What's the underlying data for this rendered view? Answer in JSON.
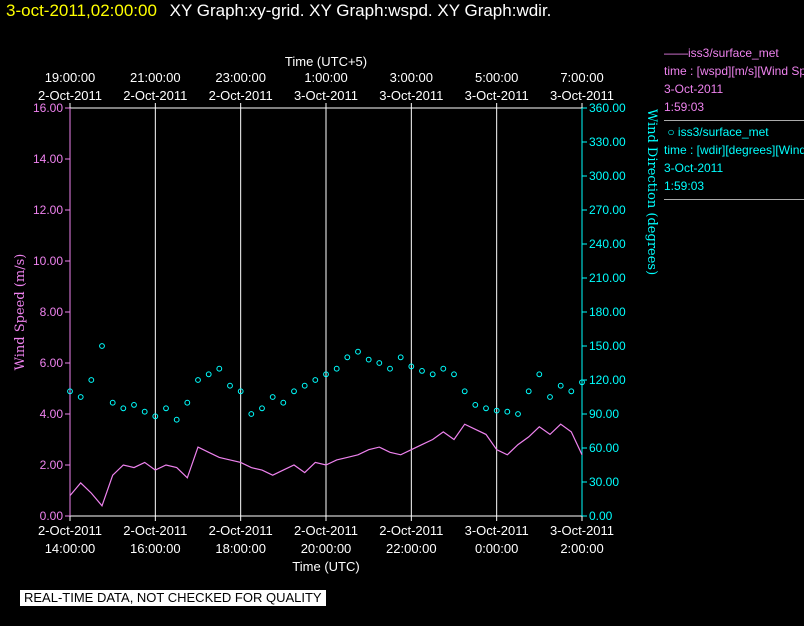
{
  "header": {
    "timestamp": "3-oct-2011,02:00:00",
    "graphs": "XY Graph:xy-grid.  XY Graph:wspd.  XY Graph:wdir."
  },
  "legend": {
    "speed": {
      "name": "iss3/surface_met",
      "line": "time : [wspd][m/s][Wind Speed]",
      "date": "3-Oct-2011",
      "time": "1:59:03"
    },
    "dir": {
      "name": "iss3/surface_met",
      "line": "time : [wdir][degrees][Wind Direction]",
      "date": "3-Oct-2011",
      "time": "1:59:03"
    }
  },
  "footer": {
    "note": "REAL-TIME DATA, NOT CHECKED FOR QUALITY"
  },
  "colors": {
    "speed": "#ee82ee",
    "direction": "#00ffff",
    "axis": "#ffffff",
    "grid": "#ffffff",
    "timestamp": "#ffff00"
  },
  "chart_data": {
    "type": "line",
    "title": "",
    "grid": true,
    "xlim": [
      0,
      12
    ],
    "top_axis": {
      "label": "Time (UTC+5)",
      "ticks": [
        {
          "x": 0,
          "time": "19:00:00",
          "date": "2-Oct-2011"
        },
        {
          "x": 2,
          "time": "21:00:00",
          "date": "2-Oct-2011"
        },
        {
          "x": 4,
          "time": "23:00:00",
          "date": "2-Oct-2011"
        },
        {
          "x": 6,
          "time": "1:00:00",
          "date": "3-Oct-2011"
        },
        {
          "x": 8,
          "time": "3:00:00",
          "date": "3-Oct-2011"
        },
        {
          "x": 10,
          "time": "5:00:00",
          "date": "3-Oct-2011"
        },
        {
          "x": 12,
          "time": "7:00:00",
          "date": "3-Oct-2011"
        }
      ]
    },
    "bottom_axis": {
      "label": "Time (UTC)",
      "ticks": [
        {
          "x": 0,
          "date": "2-Oct-2011",
          "time": "14:00:00"
        },
        {
          "x": 2,
          "date": "2-Oct-2011",
          "time": "16:00:00"
        },
        {
          "x": 4,
          "date": "2-Oct-2011",
          "time": "18:00:00"
        },
        {
          "x": 6,
          "date": "2-Oct-2011",
          "time": "20:00:00"
        },
        {
          "x": 8,
          "date": "2-Oct-2011",
          "time": "22:00:00"
        },
        {
          "x": 10,
          "date": "3-Oct-2011",
          "time": "0:00:00"
        },
        {
          "x": 12,
          "date": "3-Oct-2011",
          "time": "2:00:00"
        }
      ]
    },
    "left_axis": {
      "label": "Wind Speed (m/s)",
      "ylim": [
        0,
        16
      ],
      "ticks": [
        "0.00",
        "2.00",
        "4.00",
        "6.00",
        "8.00",
        "10.00",
        "12.00",
        "14.00",
        "16.00"
      ]
    },
    "right_axis": {
      "label": "Wind Direction (degrees)",
      "ylim": [
        0,
        360
      ],
      "ticks": [
        "0.00",
        "30.00",
        "60.00",
        "90.00",
        "120.00",
        "150.00",
        "180.00",
        "210.00",
        "240.00",
        "270.00",
        "300.00",
        "330.00",
        "360.00"
      ]
    },
    "series": [
      {
        "name": "iss3/surface_met",
        "kind": "line",
        "axis": "left",
        "x": [
          0,
          0.25,
          0.5,
          0.75,
          1,
          1.25,
          1.5,
          1.75,
          2,
          2.25,
          2.5,
          2.75,
          3,
          3.25,
          3.5,
          3.75,
          4,
          4.25,
          4.5,
          4.75,
          5,
          5.25,
          5.5,
          5.75,
          6,
          6.25,
          6.5,
          6.75,
          7,
          7.25,
          7.5,
          7.75,
          8,
          8.25,
          8.5,
          8.75,
          9,
          9.25,
          9.5,
          9.75,
          10,
          10.25,
          10.5,
          10.75,
          11,
          11.25,
          11.5,
          11.75,
          12
        ],
        "values": [
          0.8,
          1.3,
          0.9,
          0.4,
          1.6,
          2.0,
          1.9,
          2.1,
          1.8,
          2.0,
          1.9,
          1.5,
          2.7,
          2.5,
          2.3,
          2.2,
          2.1,
          1.9,
          1.8,
          1.6,
          1.8,
          2.0,
          1.7,
          2.1,
          2.0,
          2.2,
          2.3,
          2.4,
          2.6,
          2.7,
          2.5,
          2.4,
          2.6,
          2.8,
          3.0,
          3.3,
          3.0,
          3.6,
          3.4,
          3.2,
          2.6,
          2.4,
          2.8,
          3.1,
          3.5,
          3.2,
          3.6,
          3.3,
          2.4
        ]
      },
      {
        "name": "iss3/surface_met",
        "kind": "scatter",
        "axis": "right",
        "x": [
          0,
          0.25,
          0.5,
          0.75,
          1,
          1.25,
          1.5,
          1.75,
          2,
          2.25,
          2.5,
          2.75,
          3,
          3.25,
          3.5,
          3.75,
          4,
          4.25,
          4.5,
          4.75,
          5,
          5.25,
          5.5,
          5.75,
          6,
          6.25,
          6.5,
          6.75,
          7,
          7.25,
          7.5,
          7.75,
          8,
          8.25,
          8.5,
          8.75,
          9,
          9.25,
          9.5,
          9.75,
          10,
          10.25,
          10.5,
          10.75,
          11,
          11.25,
          11.5,
          11.75,
          12
        ],
        "values": [
          110,
          105,
          120,
          150,
          100,
          95,
          98,
          92,
          88,
          95,
          85,
          100,
          120,
          125,
          130,
          115,
          110,
          90,
          95,
          105,
          100,
          110,
          115,
          120,
          125,
          130,
          140,
          145,
          138,
          135,
          130,
          140,
          132,
          128,
          125,
          130,
          125,
          110,
          98,
          95,
          93,
          92,
          90,
          110,
          125,
          105,
          115,
          110,
          118
        ]
      }
    ]
  }
}
